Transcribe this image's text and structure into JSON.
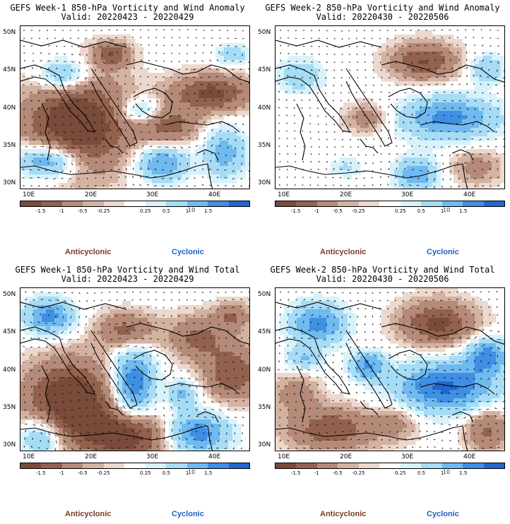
{
  "panels": [
    {
      "title": "GEFS Week-1 850-hPa Vorticity and Wind Anomaly",
      "valid": "Valid: 20220423 - 20220429",
      "pattern": "anom1"
    },
    {
      "title": "GEFS Week-2 850-hPa Vorticity and Wind Anomaly",
      "valid": "Valid: 20220430 - 20220506",
      "pattern": "anom2"
    },
    {
      "title": "GEFS Week-1 850-hPa Vorticity and Wind Total",
      "valid": "Valid: 20220423 - 20220429",
      "pattern": "tot1"
    },
    {
      "title": "GEFS Week-2 850-hPa Vorticity and Wind Total",
      "valid": "Valid: 20220430 - 20220506",
      "pattern": "tot2"
    }
  ],
  "lat_labels": [
    "50N",
    "45N",
    "40N",
    "35N",
    "30N"
  ],
  "lon_labels": [
    "10E",
    "20E",
    "30E",
    "40E"
  ],
  "colorbar": {
    "labels": [
      "-1.5",
      "-1",
      "-0.5",
      "-0.25",
      "0.25",
      "0.5",
      "1",
      "1.5"
    ],
    "scale_note": "10",
    "colors": [
      "#7a4a3a",
      "#92624e",
      "#b58a78",
      "#d4b2a2",
      "#ecd8cd",
      "#ffffff",
      "#d8f2fb",
      "#a6dcf6",
      "#6fbaf0",
      "#3f8fe3",
      "#2366d1"
    ]
  },
  "legend": {
    "anticyclonic": "Anticyclonic",
    "cyclonic": "Cyclonic"
  }
}
